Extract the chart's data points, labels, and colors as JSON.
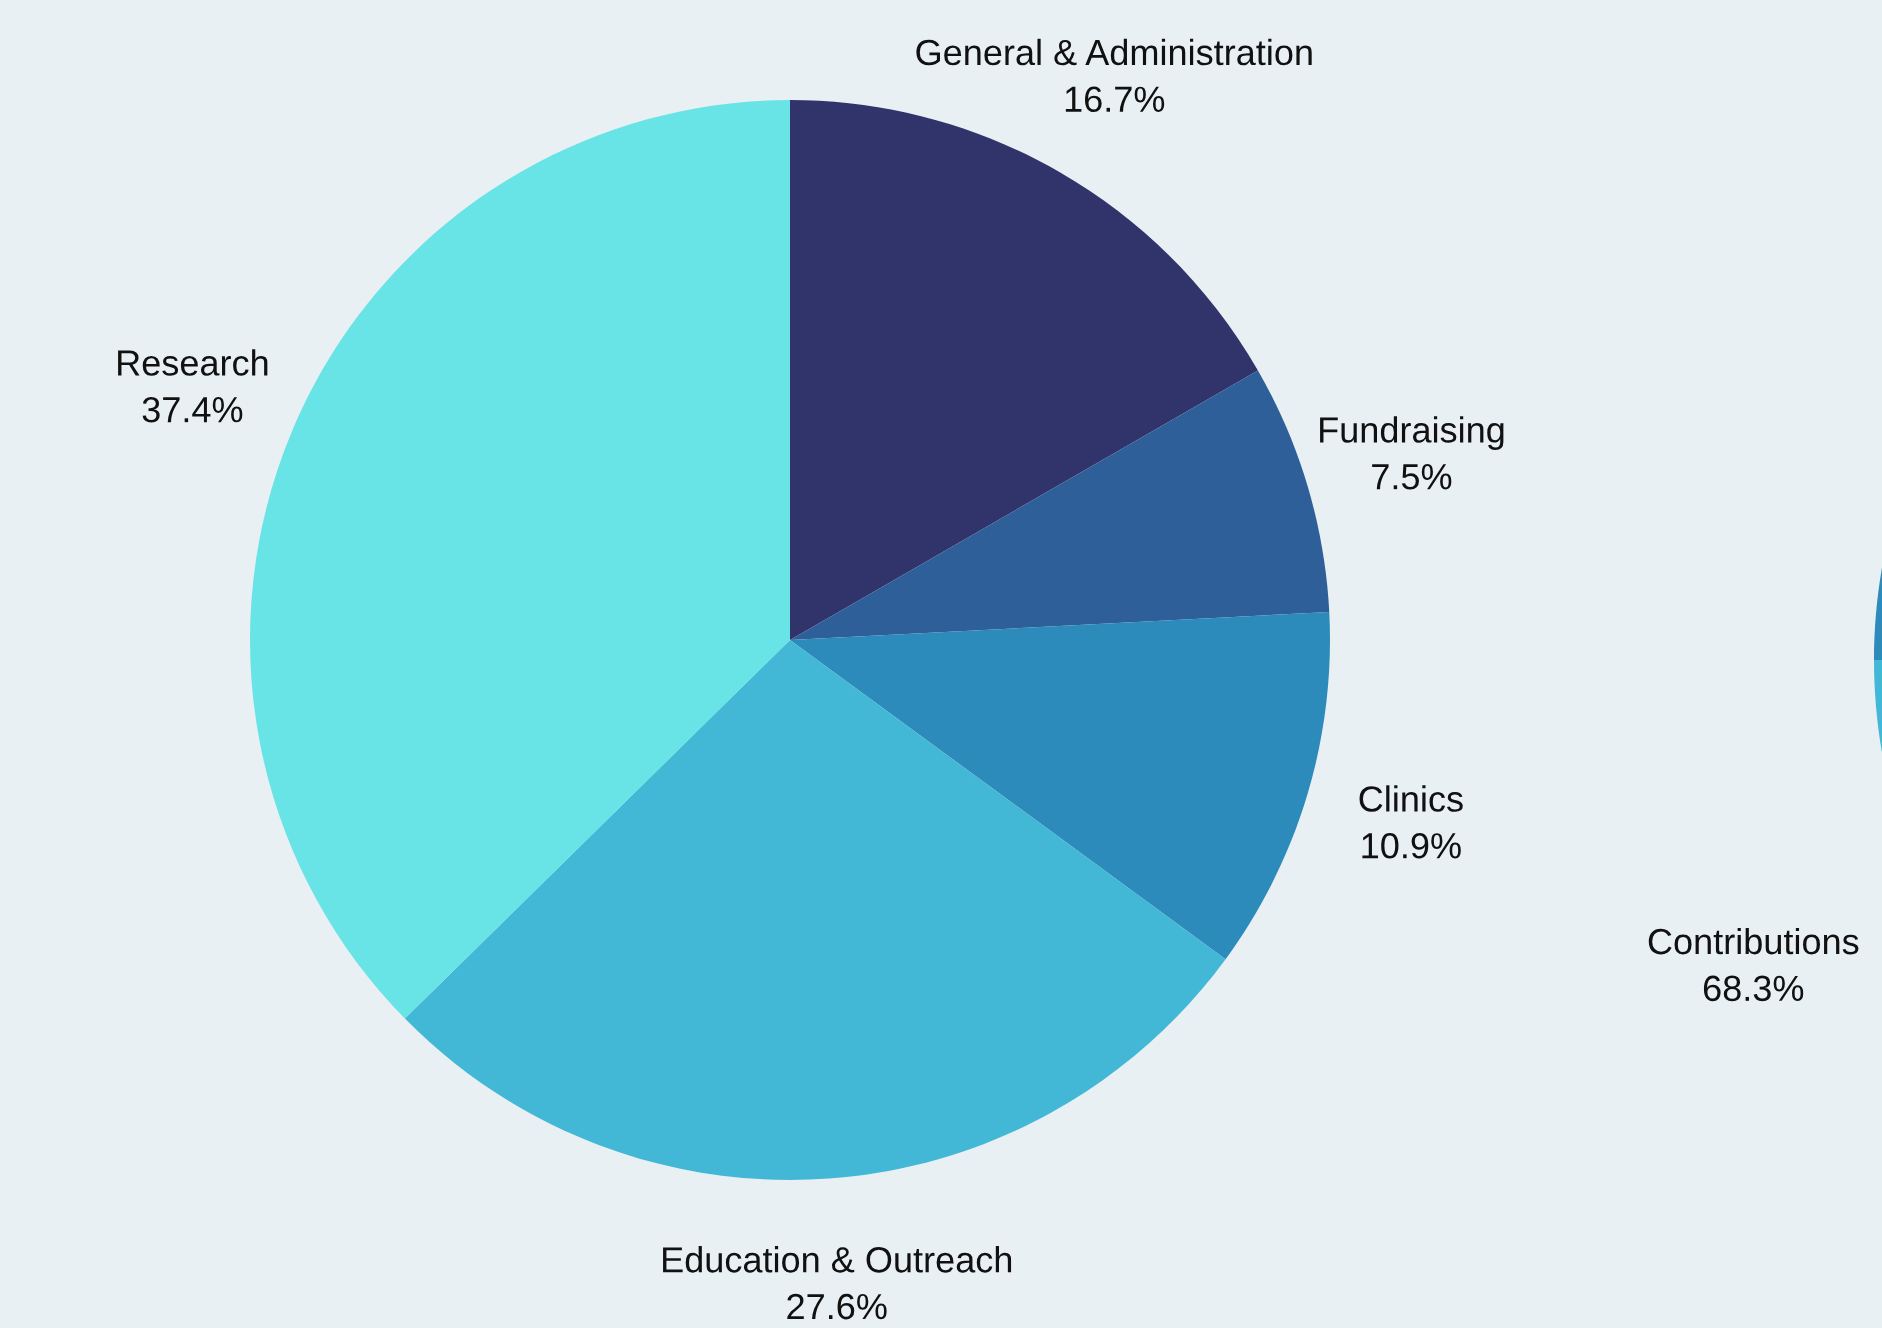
{
  "chart_data": [
    {
      "type": "pie",
      "categories": [
        "General & Administration",
        "Fundraising",
        "Clinics",
        "Education & Outreach",
        "Research"
      ],
      "values": [
        16.7,
        7.5,
        10.9,
        27.6,
        37.4
      ],
      "colors": [
        "#31346b",
        "#2e5f99",
        "#2c8bbb",
        "#42b8d6",
        "#68e3e6"
      ],
      "value_labels": [
        "16.7%",
        "7.5%",
        "10.9%",
        "27.6%",
        "37.4%"
      ]
    },
    {
      "type": "pie",
      "categories": [
        "Contributions",
        null
      ],
      "values": [
        68.3,
        31.7
      ],
      "colors": [
        "#42b8d6",
        "#2c8bbb"
      ],
      "value_labels": [
        "68.3%",
        null
      ]
    }
  ]
}
